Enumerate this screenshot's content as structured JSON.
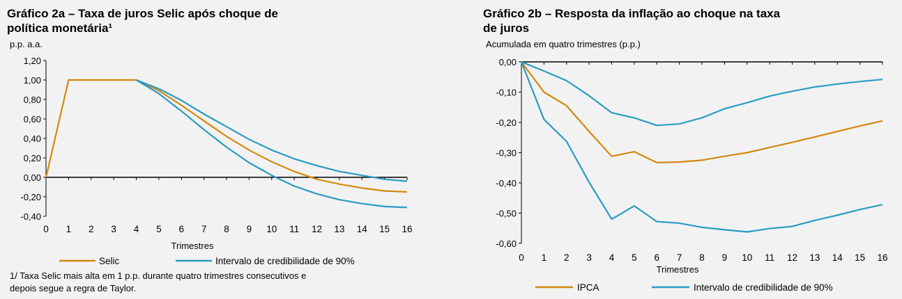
{
  "chart_data": [
    {
      "type": "line",
      "title_line1": "Gráfico 2a – Taxa de juros Selic após choque de",
      "title_line2": "política monetária¹",
      "unit": "p.p. a.a.",
      "xlabel": "Trimestres",
      "x": [
        0,
        1,
        2,
        3,
        4,
        5,
        6,
        7,
        8,
        9,
        10,
        11,
        12,
        13,
        14,
        15,
        16
      ],
      "ylim": [
        -0.4,
        1.2
      ],
      "yticks": [
        "1,20",
        "1,00",
        "0,80",
        "0,60",
        "0,40",
        "0,20",
        "0,00",
        "-0,20",
        "-0,40"
      ],
      "ytick_values": [
        1.2,
        1.0,
        0.8,
        0.6,
        0.4,
        0.2,
        0.0,
        -0.2,
        -0.4
      ],
      "series": [
        {
          "name": "Selic",
          "color": "#d4890f",
          "values": [
            0,
            1,
            1,
            1,
            1,
            0.89,
            0.74,
            0.58,
            0.42,
            0.28,
            0.16,
            0.06,
            -0.02,
            -0.07,
            -0.11,
            -0.14,
            -0.15
          ]
        },
        {
          "name": "Intervalo de credibilidade de 90%",
          "color": "#2a9bc2",
          "values": [
            null,
            null,
            null,
            null,
            1,
            0.91,
            0.79,
            0.65,
            0.52,
            0.39,
            0.28,
            0.19,
            0.12,
            0.06,
            0.02,
            -0.02,
            -0.04
          ]
        },
        {
          "name": "",
          "color": "#2a9bc2",
          "values": [
            null,
            null,
            null,
            null,
            1,
            0.86,
            0.68,
            0.49,
            0.31,
            0.15,
            0.02,
            -0.09,
            -0.17,
            -0.23,
            -0.27,
            -0.3,
            -0.31
          ]
        }
      ],
      "legend": [
        {
          "label": "Selic",
          "color": "#d4890f"
        },
        {
          "label": "Intervalo de credibilidade de 90%",
          "color": "#2a9bc2"
        }
      ],
      "note_line1": "1/ Taxa Selic mais alta em 1 p.p. durante quatro trimestres consecutivos e",
      "note_line2": "depois segue a regra de Taylor."
    },
    {
      "type": "line",
      "title_line1": "Gráfico 2b – Resposta da inflação ao choque na taxa",
      "title_line2": "de juros",
      "unit": "Acumulada em quatro trimestres (p.p.)",
      "xlabel": "Trimestres",
      "x": [
        0,
        1,
        2,
        3,
        4,
        5,
        6,
        7,
        8,
        9,
        10,
        11,
        12,
        13,
        14,
        15,
        16
      ],
      "ylim": [
        -0.6,
        0.0
      ],
      "yticks": [
        "0,00",
        "-0,10",
        "-0,20",
        "-0,30",
        "-0,40",
        "-0,50",
        "-0,60"
      ],
      "ytick_values": [
        0.0,
        -0.1,
        -0.2,
        -0.3,
        -0.4,
        -0.5,
        -0.6
      ],
      "series": [
        {
          "name": "IPCA",
          "color": "#d4890f",
          "values": [
            0,
            -0.1,
            -0.145,
            -0.23,
            -0.312,
            -0.297,
            -0.333,
            -0.331,
            -0.325,
            -0.312,
            -0.3,
            -0.283,
            -0.266,
            -0.248,
            -0.23,
            -0.212,
            -0.195
          ]
        },
        {
          "name": "Intervalo de credibilidade de 90%",
          "color": "#2a9bc2",
          "values": [
            0,
            -0.03,
            -0.062,
            -0.112,
            -0.168,
            -0.185,
            -0.21,
            -0.205,
            -0.185,
            -0.155,
            -0.135,
            -0.113,
            -0.097,
            -0.083,
            -0.073,
            -0.065,
            -0.058
          ]
        },
        {
          "name": "",
          "color": "#2a9bc2",
          "values": [
            0,
            -0.19,
            -0.263,
            -0.398,
            -0.52,
            -0.476,
            -0.528,
            -0.533,
            -0.547,
            -0.555,
            -0.562,
            -0.551,
            -0.544,
            -0.524,
            -0.507,
            -0.488,
            -0.472
          ]
        }
      ],
      "legend": [
        {
          "label": "IPCA",
          "color": "#d4890f"
        },
        {
          "label": "Intervalo de credibilidade de 90%",
          "color": "#2a9bc2"
        }
      ]
    }
  ]
}
